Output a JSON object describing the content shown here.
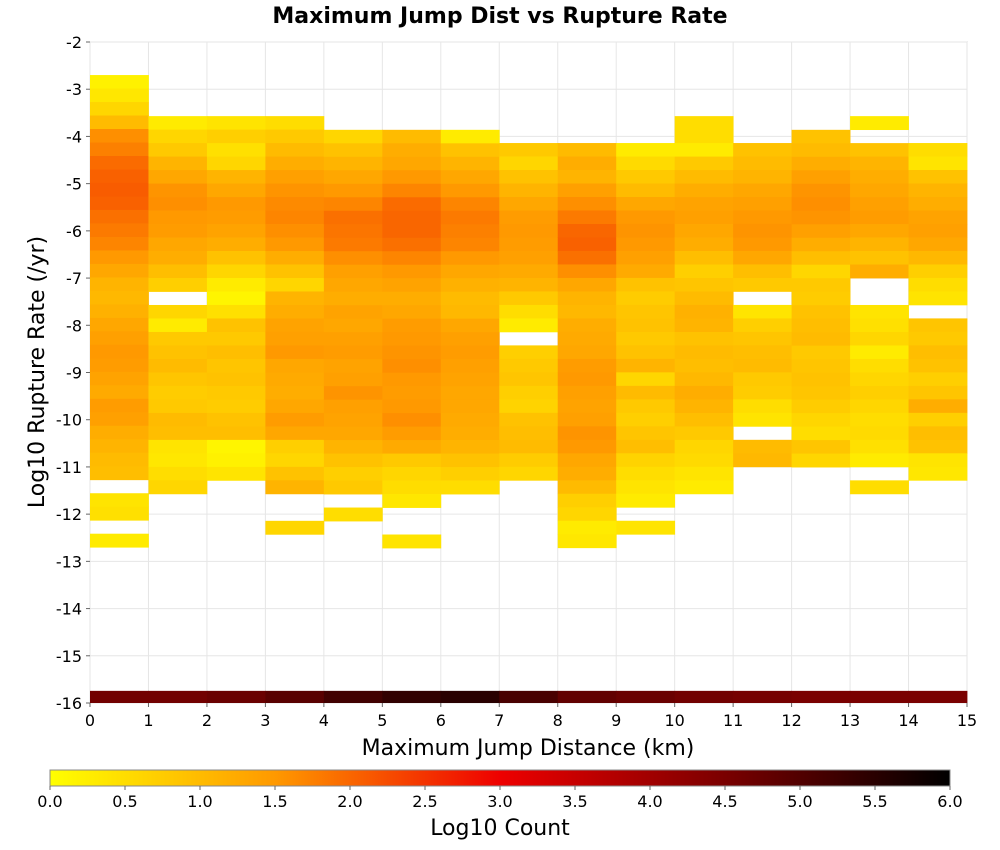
{
  "chart_data": {
    "type": "heatmap",
    "title": "Maximum Jump Dist vs Rupture Rate",
    "xlabel": "Maximum Jump Distance (km)",
    "ylabel": "Log10 Rupture Rate (/yr)",
    "xlim": [
      0,
      15
    ],
    "ylim": [
      -16,
      -2
    ],
    "x_bin_width": 1,
    "y_bin_height": 0.285714,
    "x_ticks": [
      "0",
      "1",
      "2",
      "3",
      "4",
      "5",
      "6",
      "7",
      "8",
      "9",
      "10",
      "11",
      "12",
      "13",
      "14",
      "15"
    ],
    "y_ticks": [
      "-2",
      "-3",
      "-4",
      "-5",
      "-6",
      "-7",
      "-8",
      "-9",
      "-10",
      "-11",
      "-12",
      "-13",
      "-14",
      "-15",
      "-16"
    ],
    "grid": true,
    "colorbar": {
      "label": "Log10 Count",
      "min": 0.0,
      "max": 6.0,
      "ticks": [
        "0.0",
        "0.5",
        "1.0",
        "1.5",
        "2.0",
        "2.5",
        "3.0",
        "3.5",
        "4.0",
        "4.5",
        "5.0",
        "5.5",
        "6.0"
      ],
      "stops": [
        {
          "v": 0.0,
          "color": "#ffff00"
        },
        {
          "v": 1.5,
          "color": "#ff9900"
        },
        {
          "v": 3.0,
          "color": "#ee0000"
        },
        {
          "v": 4.5,
          "color": "#7a0000"
        },
        {
          "v": 6.0,
          "color": "#000000"
        }
      ]
    },
    "columns": [
      {
        "x0": 0,
        "y_top": -2.7,
        "values": [
          0.2,
          0.35,
          0.6,
          1.0,
          1.6,
          1.75,
          1.95,
          2.05,
          2.1,
          2.05,
          1.9,
          1.8,
          1.7,
          1.5,
          1.3,
          1.1,
          1.05,
          1.15,
          1.3,
          1.4,
          1.5,
          1.45,
          1.35,
          1.25,
          1.45,
          1.4,
          1.2,
          1.1,
          1.0,
          0.95,
          -1,
          0.4,
          0.45,
          -1,
          0.3
        ]
      },
      {
        "x0": 1,
        "y_top": -3.57,
        "values": [
          0.3,
          0.6,
          0.8,
          1.1,
          1.3,
          1.55,
          1.6,
          1.5,
          1.45,
          1.3,
          1.2,
          0.95,
          0.7,
          -1,
          0.6,
          0.3,
          0.8,
          0.9,
          1.0,
          0.85,
          0.75,
          0.8,
          1.0,
          0.95,
          0.4,
          0.35,
          0.5,
          0.6
        ]
      },
      {
        "x0": 2,
        "y_top": -3.57,
        "values": [
          0.4,
          0.7,
          0.45,
          0.6,
          1.1,
          1.3,
          1.5,
          1.45,
          1.35,
          1.2,
          0.9,
          0.6,
          0.3,
          0.15,
          0.45,
          0.9,
          0.8,
          0.95,
          0.85,
          0.9,
          0.8,
          0.75,
          0.9,
          0.95,
          0.15,
          0.2,
          0.4
        ]
      },
      {
        "x0": 3,
        "y_top": -3.57,
        "values": [
          0.5,
          0.8,
          1.0,
          1.2,
          1.4,
          1.55,
          1.65,
          1.7,
          1.6,
          1.5,
          1.2,
          0.9,
          0.6,
          1.1,
          1.2,
          1.35,
          1.4,
          1.5,
          1.3,
          1.25,
          1.2,
          1.3,
          1.45,
          1.3,
          0.7,
          0.6,
          0.9,
          1.1,
          -1,
          -1,
          0.6
        ]
      },
      {
        "x0": 4,
        "y_top": -3.86,
        "values": [
          0.6,
          0.9,
          1.1,
          1.3,
          1.5,
          1.7,
          1.9,
          1.85,
          1.8,
          1.6,
          1.4,
          1.3,
          1.2,
          1.35,
          1.3,
          1.4,
          1.45,
          1.35,
          1.4,
          1.55,
          1.4,
          1.35,
          1.3,
          1.1,
          0.9,
          0.7,
          0.8,
          -1,
          0.5
        ]
      },
      {
        "x0": 5,
        "y_top": -3.86,
        "values": [
          1.0,
          1.2,
          1.3,
          1.5,
          1.7,
          1.95,
          2.0,
          2.0,
          1.9,
          1.7,
          1.5,
          1.35,
          1.2,
          1.3,
          1.45,
          1.5,
          1.55,
          1.6,
          1.5,
          1.45,
          1.5,
          1.6,
          1.45,
          1.25,
          0.8,
          0.6,
          0.5,
          0.35,
          -1,
          -1,
          0.4
        ]
      },
      {
        "x0": 6,
        "y_top": -3.86,
        "values": [
          0.3,
          0.9,
          1.1,
          1.3,
          1.5,
          1.7,
          1.8,
          1.75,
          1.7,
          1.5,
          1.3,
          1.15,
          1.0,
          1.05,
          1.3,
          1.4,
          1.45,
          1.4,
          1.35,
          1.3,
          1.3,
          1.25,
          1.2,
          1.1,
          0.9,
          0.7,
          0.5
        ]
      },
      {
        "x0": 7,
        "y_top": -4.14,
        "values": [
          0.8,
          0.6,
          0.9,
          1.1,
          1.3,
          1.45,
          1.5,
          1.45,
          1.4,
          1.25,
          1.1,
          0.8,
          0.5,
          0.3,
          -1,
          0.7,
          0.8,
          0.85,
          0.7,
          0.65,
          0.9,
          0.95,
          1.0,
          0.75,
          0.6
        ]
      },
      {
        "x0": 8,
        "y_top": -4.14,
        "values": [
          1.0,
          1.2,
          1.1,
          1.4,
          1.6,
          1.8,
          2.0,
          2.05,
          1.9,
          1.6,
          1.3,
          1.1,
          1.05,
          1.2,
          1.25,
          1.3,
          1.45,
          1.5,
          1.4,
          1.35,
          1.4,
          1.55,
          1.5,
          1.3,
          1.2,
          1.0,
          0.7,
          0.6,
          0.3,
          0.35
        ]
      },
      {
        "x0": 9,
        "y_top": -4.14,
        "values": [
          0.3,
          0.55,
          0.8,
          1.0,
          1.3,
          1.5,
          1.55,
          1.5,
          1.4,
          1.25,
          0.9,
          0.75,
          0.85,
          0.9,
          0.8,
          0.9,
          1.1,
          0.6,
          1.0,
          0.8,
          0.7,
          0.85,
          0.95,
          0.65,
          0.5,
          0.4,
          0.3,
          -1,
          0.4
        ]
      },
      {
        "x0": 10,
        "y_top": -3.57,
        "values": [
          0.5,
          0.5,
          0.3,
          0.8,
          1.0,
          1.2,
          1.35,
          1.4,
          1.3,
          1.2,
          0.95,
          0.7,
          0.85,
          1.0,
          1.15,
          1.1,
          0.9,
          1.0,
          0.95,
          1.05,
          1.2,
          1.1,
          0.95,
          0.8,
          0.6,
          0.55,
          0.4,
          0.3
        ]
      },
      {
        "x0": 11,
        "y_top": -4.14,
        "values": [
          0.9,
          1.0,
          1.1,
          1.3,
          1.4,
          1.5,
          1.55,
          1.5,
          1.3,
          0.95,
          0.8,
          -1,
          0.4,
          0.7,
          0.85,
          0.95,
          1.0,
          0.8,
          0.75,
          0.5,
          0.4,
          -1,
          1.0,
          1.05
        ]
      },
      {
        "x0": 12,
        "y_top": -3.86,
        "values": [
          0.9,
          1.0,
          1.2,
          1.4,
          1.55,
          1.6,
          1.55,
          1.4,
          1.2,
          0.95,
          0.6,
          0.8,
          0.75,
          0.9,
          0.95,
          1.0,
          0.8,
          0.85,
          0.9,
          0.85,
          0.75,
          0.6,
          0.5,
          0.85,
          0.6
        ]
      },
      {
        "x0": 13,
        "y_top": -3.57,
        "values": [
          0.3,
          -1,
          0.9,
          1.1,
          1.2,
          1.3,
          1.4,
          1.45,
          1.3,
          1.1,
          0.9,
          1.2,
          -1,
          -1,
          0.4,
          0.45,
          0.6,
          0.3,
          0.5,
          0.6,
          0.7,
          0.6,
          0.5,
          0.55,
          0.45,
          0.3,
          -1,
          0.5
        ]
      },
      {
        "x0": 14,
        "y_top": -4.14,
        "values": [
          0.5,
          0.4,
          0.9,
          1.1,
          1.2,
          1.35,
          1.4,
          1.3,
          1.05,
          0.7,
          0.5,
          0.4,
          -1,
          0.85,
          0.8,
          0.95,
          0.9,
          0.7,
          0.85,
          1.2,
          0.7,
          0.95,
          0.9,
          0.4,
          0.35
        ]
      }
    ],
    "bottom_band": {
      "y": -16,
      "values": [
        4.6,
        4.6,
        4.7,
        4.9,
        5.2,
        5.4,
        5.5,
        5.1,
        4.8,
        4.7,
        4.6,
        4.55,
        4.5,
        4.5,
        4.5
      ]
    }
  }
}
